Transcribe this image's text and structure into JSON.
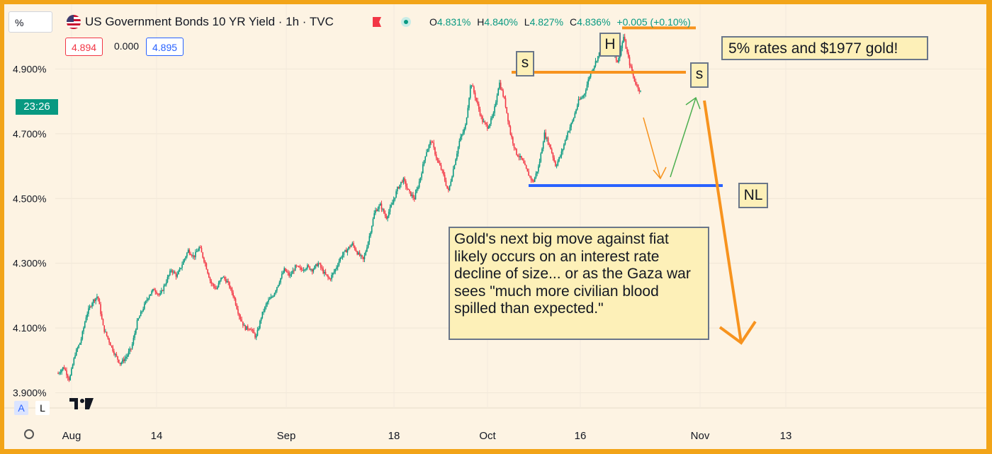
{
  "header": {
    "title": "US Government Bonds 10 YR Yield · 1h · TVC",
    "scale_label": "%",
    "ohlc": {
      "o_label": "O",
      "o": "4.831%",
      "h_label": "H",
      "h": "4.840%",
      "l_label": "L",
      "l": "4.827%",
      "c_label": "C",
      "c": "4.836%",
      "change": "+0.005 (+0.10%)"
    },
    "bid": "4.894",
    "spread": "0.000",
    "ask": "4.895",
    "flag_icon": "us-flag-icon",
    "colors": {
      "up": "#089981",
      "down": "#f23645",
      "bid": "#f23645",
      "ask": "#2962ff",
      "accent": "#f7931e"
    }
  },
  "price_axis": {
    "ticks": [
      "4.900%",
      "4.700%",
      "4.500%",
      "4.300%",
      "4.100%",
      "3.900%"
    ],
    "values": [
      4.9,
      4.7,
      4.5,
      4.3,
      4.1,
      3.9
    ],
    "countdown": "23:26"
  },
  "time_axis": {
    "labels": [
      "Aug",
      "14",
      "Sep",
      "18",
      "Oct",
      "16",
      "Nov",
      "13"
    ]
  },
  "bottom_buttons": {
    "auto": "A",
    "log": "L"
  },
  "chart_data": {
    "type": "line",
    "series": [
      {
        "values": [
          3.96,
          3.98,
          3.94,
          4.02,
          4.06,
          4.14,
          4.18,
          4.2,
          4.1,
          4.06,
          4.02,
          3.99,
          4.01,
          4.04,
          4.12,
          4.16,
          4.2,
          4.22,
          4.2,
          4.24,
          4.28,
          4.26,
          4.3,
          4.34,
          4.32,
          4.35,
          4.3,
          4.24,
          4.22,
          4.26,
          4.24,
          4.2,
          4.14,
          4.1,
          4.1,
          4.07,
          4.14,
          4.18,
          4.2,
          4.24,
          4.28,
          4.26,
          4.29,
          4.28,
          4.29,
          4.28,
          4.3,
          4.27,
          4.25,
          4.28,
          4.32,
          4.34,
          4.36,
          4.33,
          4.31,
          4.38,
          4.46,
          4.48,
          4.44,
          4.48,
          4.53,
          4.56,
          4.52,
          4.5,
          4.56,
          4.64,
          4.68,
          4.62,
          4.58,
          4.52,
          4.6,
          4.68,
          4.72,
          4.86,
          4.8,
          4.74,
          4.72,
          4.76,
          4.86,
          4.8,
          4.7,
          4.64,
          4.62,
          4.58,
          4.55,
          4.6,
          4.7,
          4.66,
          4.6,
          4.64,
          4.7,
          4.74,
          4.8,
          4.82,
          4.88,
          4.92,
          4.96,
          5.0,
          4.96,
          4.92,
          5.0,
          4.92,
          4.86,
          4.83
        ]
      }
    ],
    "ylim": [
      3.875,
      5.1
    ],
    "annotations": {
      "s_left": "s",
      "head": "H",
      "s_right": "s",
      "neckline": "NL",
      "headline": "5% rates and $1977 gold!",
      "note": "Gold's next big move against fiat likely occurs on an interest rate decline of size... or as the Gaza war sees \"much more civilian blood spilled than expected.\""
    },
    "levels": {
      "shoulder": 4.89,
      "head": 5.027,
      "neckline": 4.54
    }
  }
}
